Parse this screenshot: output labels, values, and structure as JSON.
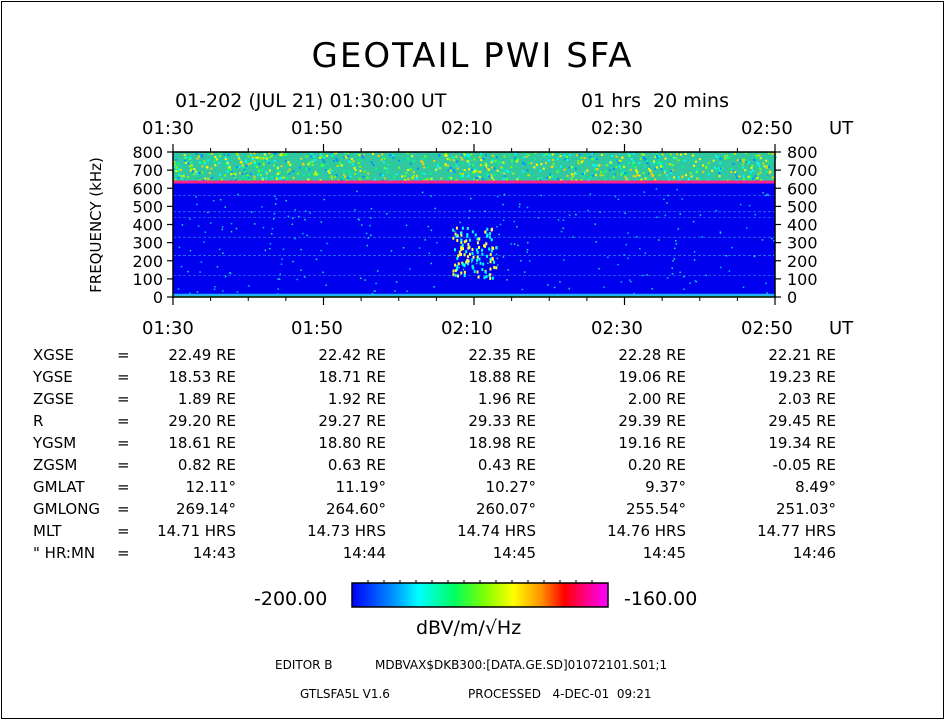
{
  "header": {
    "title": "GEOTAIL PWI SFA",
    "subtitle_date": "01-202 (JUL 21) 01:30:00 UT",
    "subtitle_duration": "01 hrs  20 mins"
  },
  "time_axis": {
    "labels": [
      "01:30",
      "01:50",
      "02:10",
      "02:30",
      "02:50"
    ],
    "unit": "UT"
  },
  "chart_data": {
    "type": "heatmap",
    "title": "GEOTAIL PWI SFA",
    "xlabel": "UT",
    "ylabel": "FREQUENCY (kHz)",
    "x_ticks": [
      "01:30",
      "01:50",
      "02:10",
      "02:30",
      "02:50"
    ],
    "y_ticks": [
      0,
      100,
      200,
      300,
      400,
      500,
      600,
      700,
      800
    ],
    "ylim": [
      0,
      800
    ],
    "colorbar": {
      "min": "-200.00",
      "max": "-160.00",
      "unit": "dBV/m/√Hz"
    },
    "features": [
      {
        "band": "continuous emission",
        "freq_range_khz": [
          640,
          800
        ]
      },
      {
        "band": "narrow line",
        "freq_khz": 637
      },
      {
        "band": "bursts near 02:10",
        "freq_range_khz": [
          100,
          400
        ]
      }
    ]
  },
  "orbit_table": {
    "rows": [
      {
        "label": "XGSE",
        "sep": "=",
        "values": [
          "22.49 RE",
          "22.42 RE",
          "22.35 RE",
          "22.28 RE",
          "22.21 RE"
        ]
      },
      {
        "label": "YGSE",
        "sep": "=",
        "values": [
          "18.53 RE",
          "18.71 RE",
          "18.88 RE",
          "19.06 RE",
          "19.23 RE"
        ]
      },
      {
        "label": "ZGSE",
        "sep": "=",
        "values": [
          "1.89 RE",
          "1.92 RE",
          "1.96 RE",
          "2.00 RE",
          "2.03 RE"
        ]
      },
      {
        "label": "R",
        "sep": "=",
        "values": [
          "29.20 RE",
          "29.27 RE",
          "29.33 RE",
          "29.39 RE",
          "29.45 RE"
        ]
      },
      {
        "label": "YGSM",
        "sep": "=",
        "values": [
          "18.61 RE",
          "18.80 RE",
          "18.98 RE",
          "19.16 RE",
          "19.34 RE"
        ]
      },
      {
        "label": "ZGSM",
        "sep": "=",
        "values": [
          "0.82 RE",
          "0.63 RE",
          "0.43 RE",
          "0.20 RE",
          "-0.05 RE"
        ]
      },
      {
        "label": "GMLAT",
        "sep": "=",
        "values": [
          "12.11°",
          "11.19°",
          "10.27°",
          "9.37°",
          "8.49°"
        ]
      },
      {
        "label": "GMLONG",
        "sep": "=",
        "values": [
          "269.14°",
          "264.60°",
          "260.07°",
          "255.54°",
          "251.03°"
        ]
      },
      {
        "label": "MLT",
        "sep": "=",
        "values": [
          "14.71 HRS",
          "14.73 HRS",
          "14.74 HRS",
          "14.76 HRS",
          "14.77 HRS"
        ]
      },
      {
        "label": "\" HR:MN",
        "sep": "=",
        "values": [
          "14:43",
          "14:44",
          "14:45",
          "14:45",
          "14:46"
        ]
      }
    ]
  },
  "colorbar": {
    "min_label": "-200.00",
    "max_label": "-160.00",
    "unit": "dBV/m/√Hz"
  },
  "footer": {
    "editor": "EDITOR B",
    "path": "MDBVAX$DKB300:[DATA.GE.SD]01072101.S01;1",
    "program": "GTLSFA5L V1.6",
    "processed": "PROCESSED   4-DEC-01  09:21"
  }
}
